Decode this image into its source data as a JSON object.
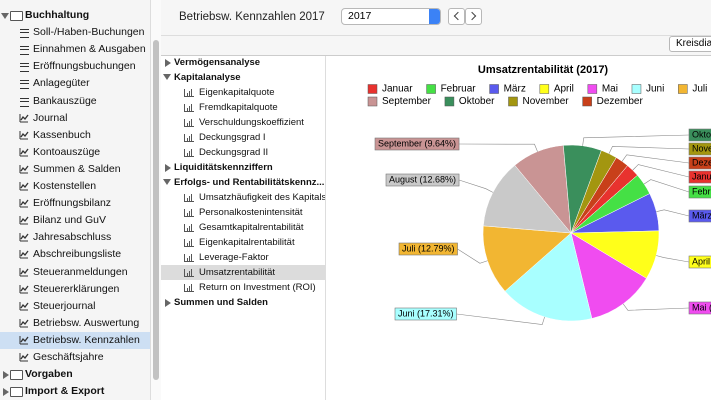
{
  "sidebar": {
    "groups": [
      {
        "label": "Buchhaltung",
        "items": [
          "Soll-/Haben-Buchungen",
          "Einnahmen & Ausgaben",
          "Eröffnungsbuchungen",
          "Anlagegüter",
          "Bankauszüge",
          "Journal",
          "Kassenbuch",
          "Kontoauszüge",
          "Summen & Salden",
          "Kostenstellen",
          "Eröffnungsbilanz",
          "Bilanz und GuV",
          "Jahresabschluss",
          "Abschreibungsliste",
          "Steueranmeldungen",
          "Steuererklärungen",
          "Steuerjournal",
          "Betriebsw. Auswertung",
          "Betriebsw. Kennzahlen",
          "Geschäftsjahre"
        ]
      },
      {
        "label": "Vorgaben",
        "items": []
      },
      {
        "label": "Import & Export",
        "items": []
      }
    ]
  },
  "toolbar": {
    "title": "Betriebsw. Kennzahlen 2017",
    "year": "2017",
    "chart_button": "Kreisdia"
  },
  "tree": [
    {
      "label": "Vermögensanalyse",
      "items": []
    },
    {
      "label": "Kapitalanalyse",
      "items": [
        "Eigenkapitalquote",
        "Fremdkapitalquote",
        "Verschuldungskoeffizient",
        "Deckungsgrad I",
        "Deckungsgrad II"
      ]
    },
    {
      "label": "Liquiditätskennziffern",
      "items": []
    },
    {
      "label": "Erfolgs- und Rentabilitätskennz...",
      "items": [
        "Umsatzhäufigkeit des Kapitals",
        "Personalkostenintensität",
        "Gesamtkapitalrentabilität",
        "Eigenkapitalrentabilität",
        "Leverage-Faktor",
        "Umsatzrentabilität",
        "Return on Investment (ROI)"
      ]
    },
    {
      "label": "Summen und Salden",
      "items": []
    }
  ],
  "chart_data": {
    "type": "pie",
    "title": "Umsatzrentabilität (2017)",
    "categories": [
      "Januar",
      "Februar",
      "März",
      "April",
      "Mai",
      "Juni",
      "Juli",
      "August",
      "September",
      "Oktober",
      "November",
      "Dezember"
    ],
    "values": [
      2.5,
      4,
      7,
      9,
      12.58,
      17.31,
      12.79,
      12.68,
      9.64,
      7,
      3,
      2.5
    ],
    "value_labels": [
      "Janu",
      "Febru",
      "März",
      "April",
      "Mai (",
      "Juni (17.31%)",
      "Juli (12.79%)",
      "August (12.68%)",
      "September (9.64%)",
      "Oktob",
      "Nove",
      "Deze"
    ],
    "colors": [
      "#e8322e",
      "#45e045",
      "#5a5aee",
      "#ffff1a",
      "#f04cf0",
      "#a8ffff",
      "#f2b632",
      "#c9c9c9",
      "#c99494",
      "#3a8f5c",
      "#a39610",
      "#c8401a"
    ]
  }
}
